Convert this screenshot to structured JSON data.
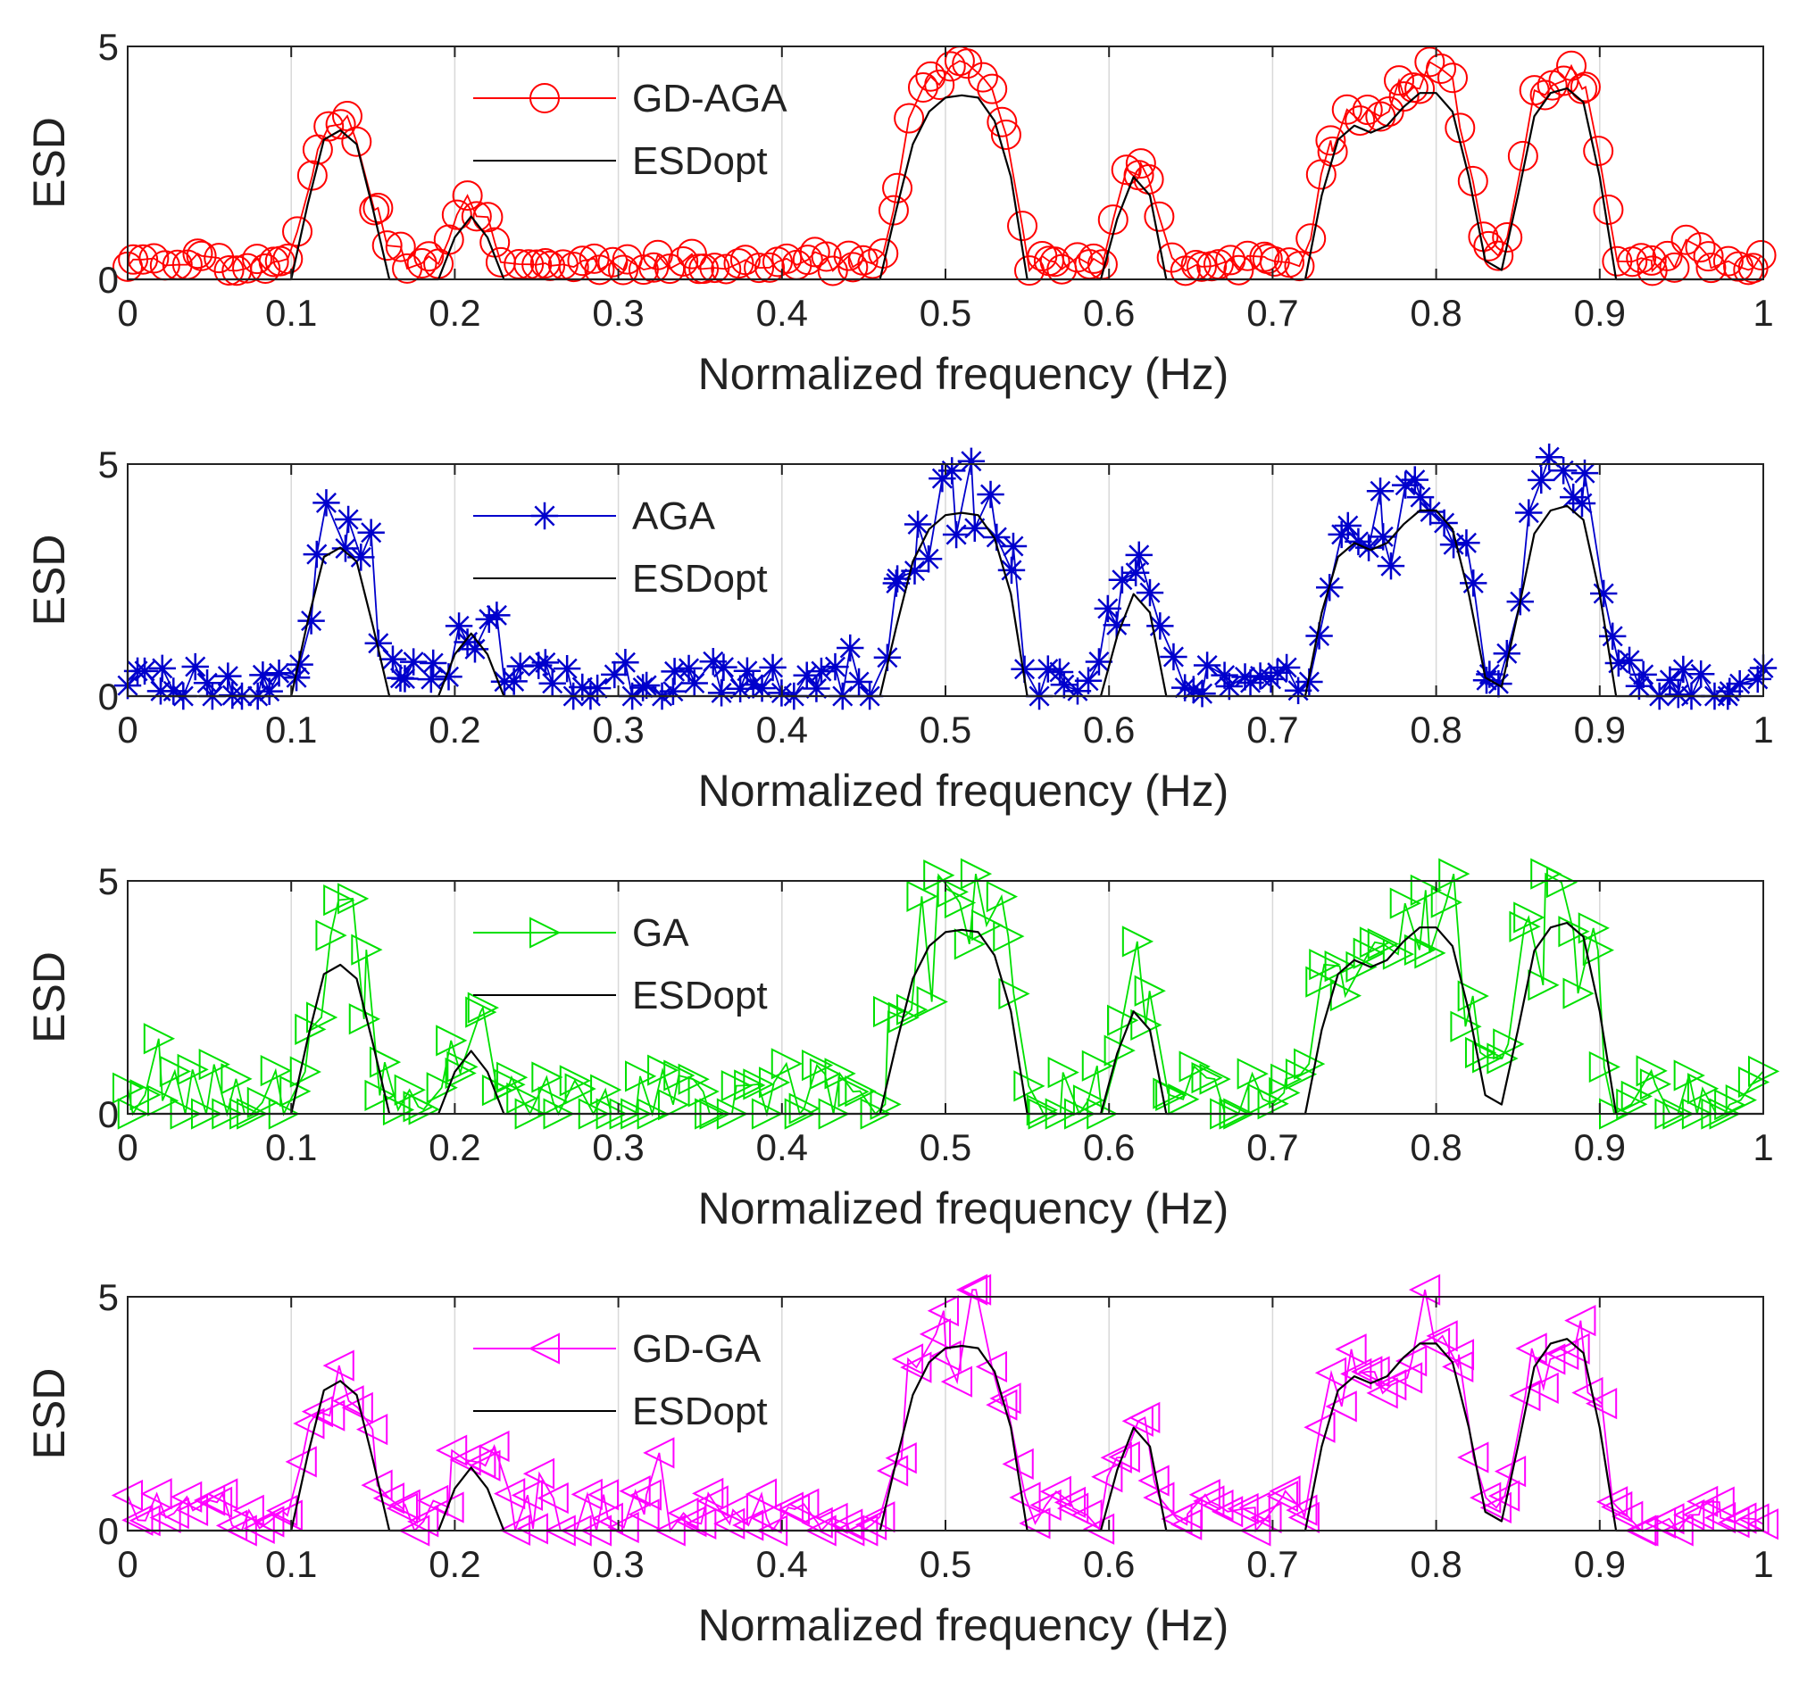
{
  "chart_data": [
    {
      "type": "line",
      "title": "",
      "xlabel": "Normalized frequency (Hz)",
      "ylabel": "ESD",
      "xlim": [
        0,
        1
      ],
      "ylim": [
        0,
        5
      ],
      "xticks": [
        "0",
        "0.1",
        "0.2",
        "0.3",
        "0.4",
        "0.5",
        "0.6",
        "0.7",
        "0.8",
        "0.9",
        "1"
      ],
      "yticks": [
        "0",
        "5"
      ],
      "grid": "vertical",
      "legend_position": "top-center",
      "series": [
        {
          "name": "GD-AGA",
          "marker": "circle",
          "color": "#ff0000",
          "noise": 0.35,
          "seed": 11
        },
        {
          "name": "ESDopt",
          "marker": "none",
          "color": "#000000"
        }
      ]
    },
    {
      "type": "line",
      "title": "",
      "xlabel": "Normalized frequency (Hz)",
      "ylabel": "ESD",
      "xlim": [
        0,
        1
      ],
      "ylim": [
        0,
        5
      ],
      "xticks": [
        "0",
        "0.1",
        "0.2",
        "0.3",
        "0.4",
        "0.5",
        "0.6",
        "0.7",
        "0.8",
        "0.9",
        "1"
      ],
      "yticks": [
        "0",
        "5"
      ],
      "grid": "vertical",
      "legend_position": "top-center",
      "series": [
        {
          "name": "AGA",
          "marker": "asterisk",
          "color": "#0000cc",
          "noise": 0.9,
          "seed": 23
        },
        {
          "name": "ESDopt",
          "marker": "none",
          "color": "#000000"
        }
      ]
    },
    {
      "type": "line",
      "title": "",
      "xlabel": "Normalized frequency (Hz)",
      "ylabel": "ESD",
      "xlim": [
        0,
        1
      ],
      "ylim": [
        0,
        5
      ],
      "xticks": [
        "0",
        "0.1",
        "0.2",
        "0.3",
        "0.4",
        "0.5",
        "0.6",
        "0.7",
        "0.8",
        "0.9",
        "1"
      ],
      "yticks": [
        "0",
        "5"
      ],
      "grid": "vertical",
      "legend_position": "top-center",
      "series": [
        {
          "name": "GA",
          "marker": "triangle-right",
          "color": "#00e000",
          "noise": 1.5,
          "seed": 37
        },
        {
          "name": "ESDopt",
          "marker": "none",
          "color": "#000000"
        }
      ]
    },
    {
      "type": "line",
      "title": "",
      "xlabel": "Normalized frequency (Hz)",
      "ylabel": "ESD",
      "xlim": [
        0,
        1
      ],
      "ylim": [
        0,
        5
      ],
      "xticks": [
        "0",
        "0.1",
        "0.2",
        "0.3",
        "0.4",
        "0.5",
        "0.6",
        "0.7",
        "0.8",
        "0.9",
        "1"
      ],
      "yticks": [
        "0",
        "5"
      ],
      "grid": "vertical",
      "legend_position": "top-center",
      "series": [
        {
          "name": "GD-GA",
          "marker": "triangle-left",
          "color": "#ff00ff",
          "noise": 1.0,
          "seed": 51
        },
        {
          "name": "ESDopt",
          "marker": "none",
          "color": "#000000"
        }
      ]
    }
  ],
  "esdopt_curve": {
    "x": [
      0,
      0.1,
      0.11,
      0.12,
      0.13,
      0.14,
      0.15,
      0.16,
      0.19,
      0.2,
      0.21,
      0.22,
      0.23,
      0.46,
      0.47,
      0.48,
      0.49,
      0.5,
      0.51,
      0.52,
      0.53,
      0.54,
      0.55,
      0.595,
      0.605,
      0.615,
      0.625,
      0.635,
      0.645,
      0.72,
      0.73,
      0.74,
      0.75,
      0.76,
      0.77,
      0.78,
      0.79,
      0.8,
      0.81,
      0.82,
      0.83,
      0.84,
      0.85,
      0.86,
      0.87,
      0.88,
      0.89,
      0.9,
      0.91,
      1
    ],
    "y": [
      0,
      0,
      1.6,
      3.0,
      3.2,
      2.9,
      1.5,
      0,
      0,
      0.9,
      1.35,
      0.9,
      0,
      0,
      1.5,
      2.9,
      3.6,
      3.9,
      3.95,
      3.9,
      3.4,
      2.2,
      0,
      0,
      1.3,
      2.2,
      1.8,
      0,
      0,
      0,
      1.8,
      3.0,
      3.3,
      3.15,
      3.3,
      3.7,
      4.0,
      4.0,
      3.6,
      2.2,
      0.4,
      0.2,
      1.8,
      3.5,
      4.0,
      4.1,
      3.8,
      2.2,
      0,
      0
    ]
  },
  "estimate_samples": 170
}
